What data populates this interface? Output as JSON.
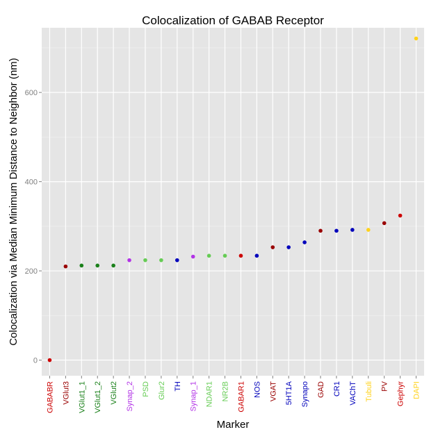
{
  "chart_data": {
    "type": "scatter",
    "title": "Colocalization of GABAB Receptor",
    "xlabel": "Marker",
    "ylabel": "Colocalization via Median Minimum Distance to Neighbor (nm)",
    "ylim": [
      -35,
      745
    ],
    "yticks": [
      0,
      200,
      400,
      600
    ],
    "grid": true,
    "legend": "none",
    "categories": [
      "GABABR",
      "VGlut3",
      "VGlut1_1",
      "VGlut1_2",
      "VGlut2",
      "Synap_2",
      "PSD",
      "Glur2",
      "TH",
      "Synap_1",
      "NDAR1",
      "NR2B",
      "GABAR1",
      "NOS",
      "VGAT",
      "5HT1A",
      "Synapo",
      "GAD",
      "CR1",
      "VAChT",
      "Tubuli",
      "PV",
      "Gephyr",
      "DAPI"
    ],
    "values": [
      0,
      210,
      212,
      212,
      212,
      224,
      224,
      224,
      224,
      232,
      234,
      234,
      234,
      234,
      253,
      253,
      264,
      290,
      290,
      292,
      292,
      307,
      324,
      721
    ],
    "colors": [
      "#cc0000",
      "#990000",
      "#1a801a",
      "#1a801a",
      "#1a801a",
      "#b233e6",
      "#66cc55",
      "#66cc55",
      "#0000bb",
      "#b233e6",
      "#66cc55",
      "#66cc55",
      "#cc0000",
      "#0000bb",
      "#990000",
      "#0000bb",
      "#0000bb",
      "#990000",
      "#0000bb",
      "#0000bb",
      "#ffd21a",
      "#990000",
      "#cc0000",
      "#ffd21a"
    ]
  },
  "theme": {
    "panel_bg": "#e5e5e5",
    "grid_major": "#ffffff",
    "grid_minor": "#f2f2f2"
  }
}
